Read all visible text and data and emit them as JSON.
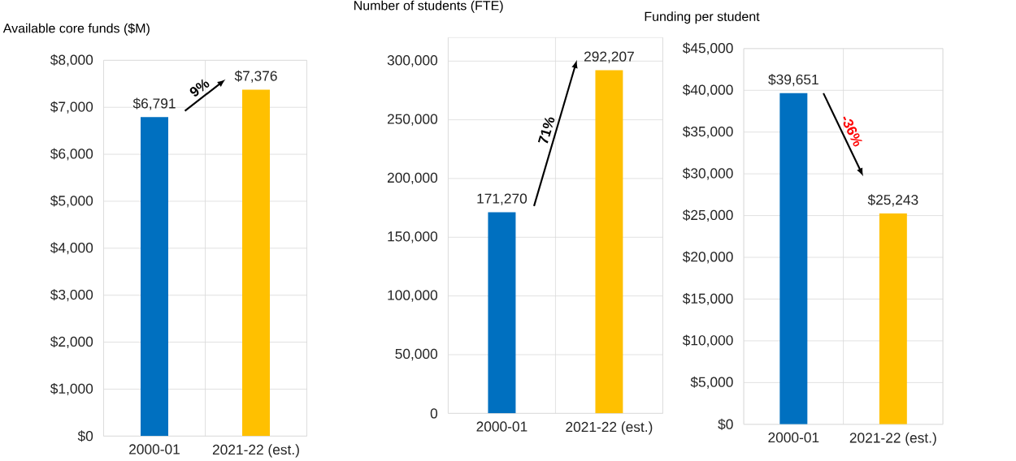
{
  "chart_data": [
    {
      "type": "bar",
      "title": "Available core funds ($M)",
      "categories": [
        "2000-01",
        "2021-22 (est.)"
      ],
      "values": [
        6791,
        7376
      ],
      "colors": [
        "#0070c0",
        "#ffc000"
      ],
      "value_labels": [
        "$6,791",
        "$7,376"
      ],
      "ylim": [
        0,
        8000
      ],
      "yticks": [
        {
          "value": 0,
          "label": "$0"
        },
        {
          "value": 1000,
          "label": "$1,000"
        },
        {
          "value": 2000,
          "label": "$2,000"
        },
        {
          "value": 3000,
          "label": "$3,000"
        },
        {
          "value": 4000,
          "label": "$4,000"
        },
        {
          "value": 5000,
          "label": "$5,000"
        },
        {
          "value": 6000,
          "label": "$6,000"
        },
        {
          "value": 7000,
          "label": "$7,000"
        },
        {
          "value": 8000,
          "label": "$8,000"
        }
      ],
      "grid": true,
      "annotations": [
        "9%"
      ]
    },
    {
      "type": "bar",
      "title": "Number of students (FTE)",
      "categories": [
        "2000-01",
        "2021-22 (est.)"
      ],
      "values": [
        171270,
        292207
      ],
      "colors": [
        "#0070c0",
        "#ffc000"
      ],
      "value_labels": [
        "171,270",
        "292,207"
      ],
      "ylim": [
        0,
        320000
      ],
      "yticks": [
        0,
        {
          "value": 50000,
          "label": "50,000"
        },
        {
          "value": 100000,
          "label": "100,000"
        },
        {
          "value": 150000,
          "label": "150,000"
        },
        {
          "value": 200000,
          "label": "200,000"
        },
        {
          "value": 250000,
          "label": "250,000"
        },
        {
          "value": 300000,
          "label": "300,000"
        }
      ],
      "grid": true,
      "annotations": [
        "71%"
      ]
    },
    {
      "type": "bar",
      "title": "Funding per student",
      "categories": [
        "2000-01",
        "2021-22 (est.)"
      ],
      "values": [
        39651,
        25243
      ],
      "colors": [
        "#0070c0",
        "#ffc000"
      ],
      "value_labels": [
        "$39,651",
        "$25,243"
      ],
      "ylim": [
        0,
        45000
      ],
      "yticks": [
        {
          "value": 0,
          "label": "$0"
        },
        {
          "value": 5000,
          "label": "$5,000"
        },
        {
          "value": 10000,
          "label": "$10,000"
        },
        {
          "value": 15000,
          "label": "$15,000"
        },
        {
          "value": 20000,
          "label": "$20,000"
        },
        {
          "value": 25000,
          "label": "$25,000"
        },
        {
          "value": 30000,
          "label": "$30,000"
        },
        {
          "value": 35000,
          "label": "$35,000"
        },
        {
          "value": 40000,
          "label": "$40,000"
        },
        {
          "value": 45000,
          "label": "$45,000"
        }
      ],
      "grid": true,
      "annotations": [
        "-36%"
      ]
    }
  ]
}
